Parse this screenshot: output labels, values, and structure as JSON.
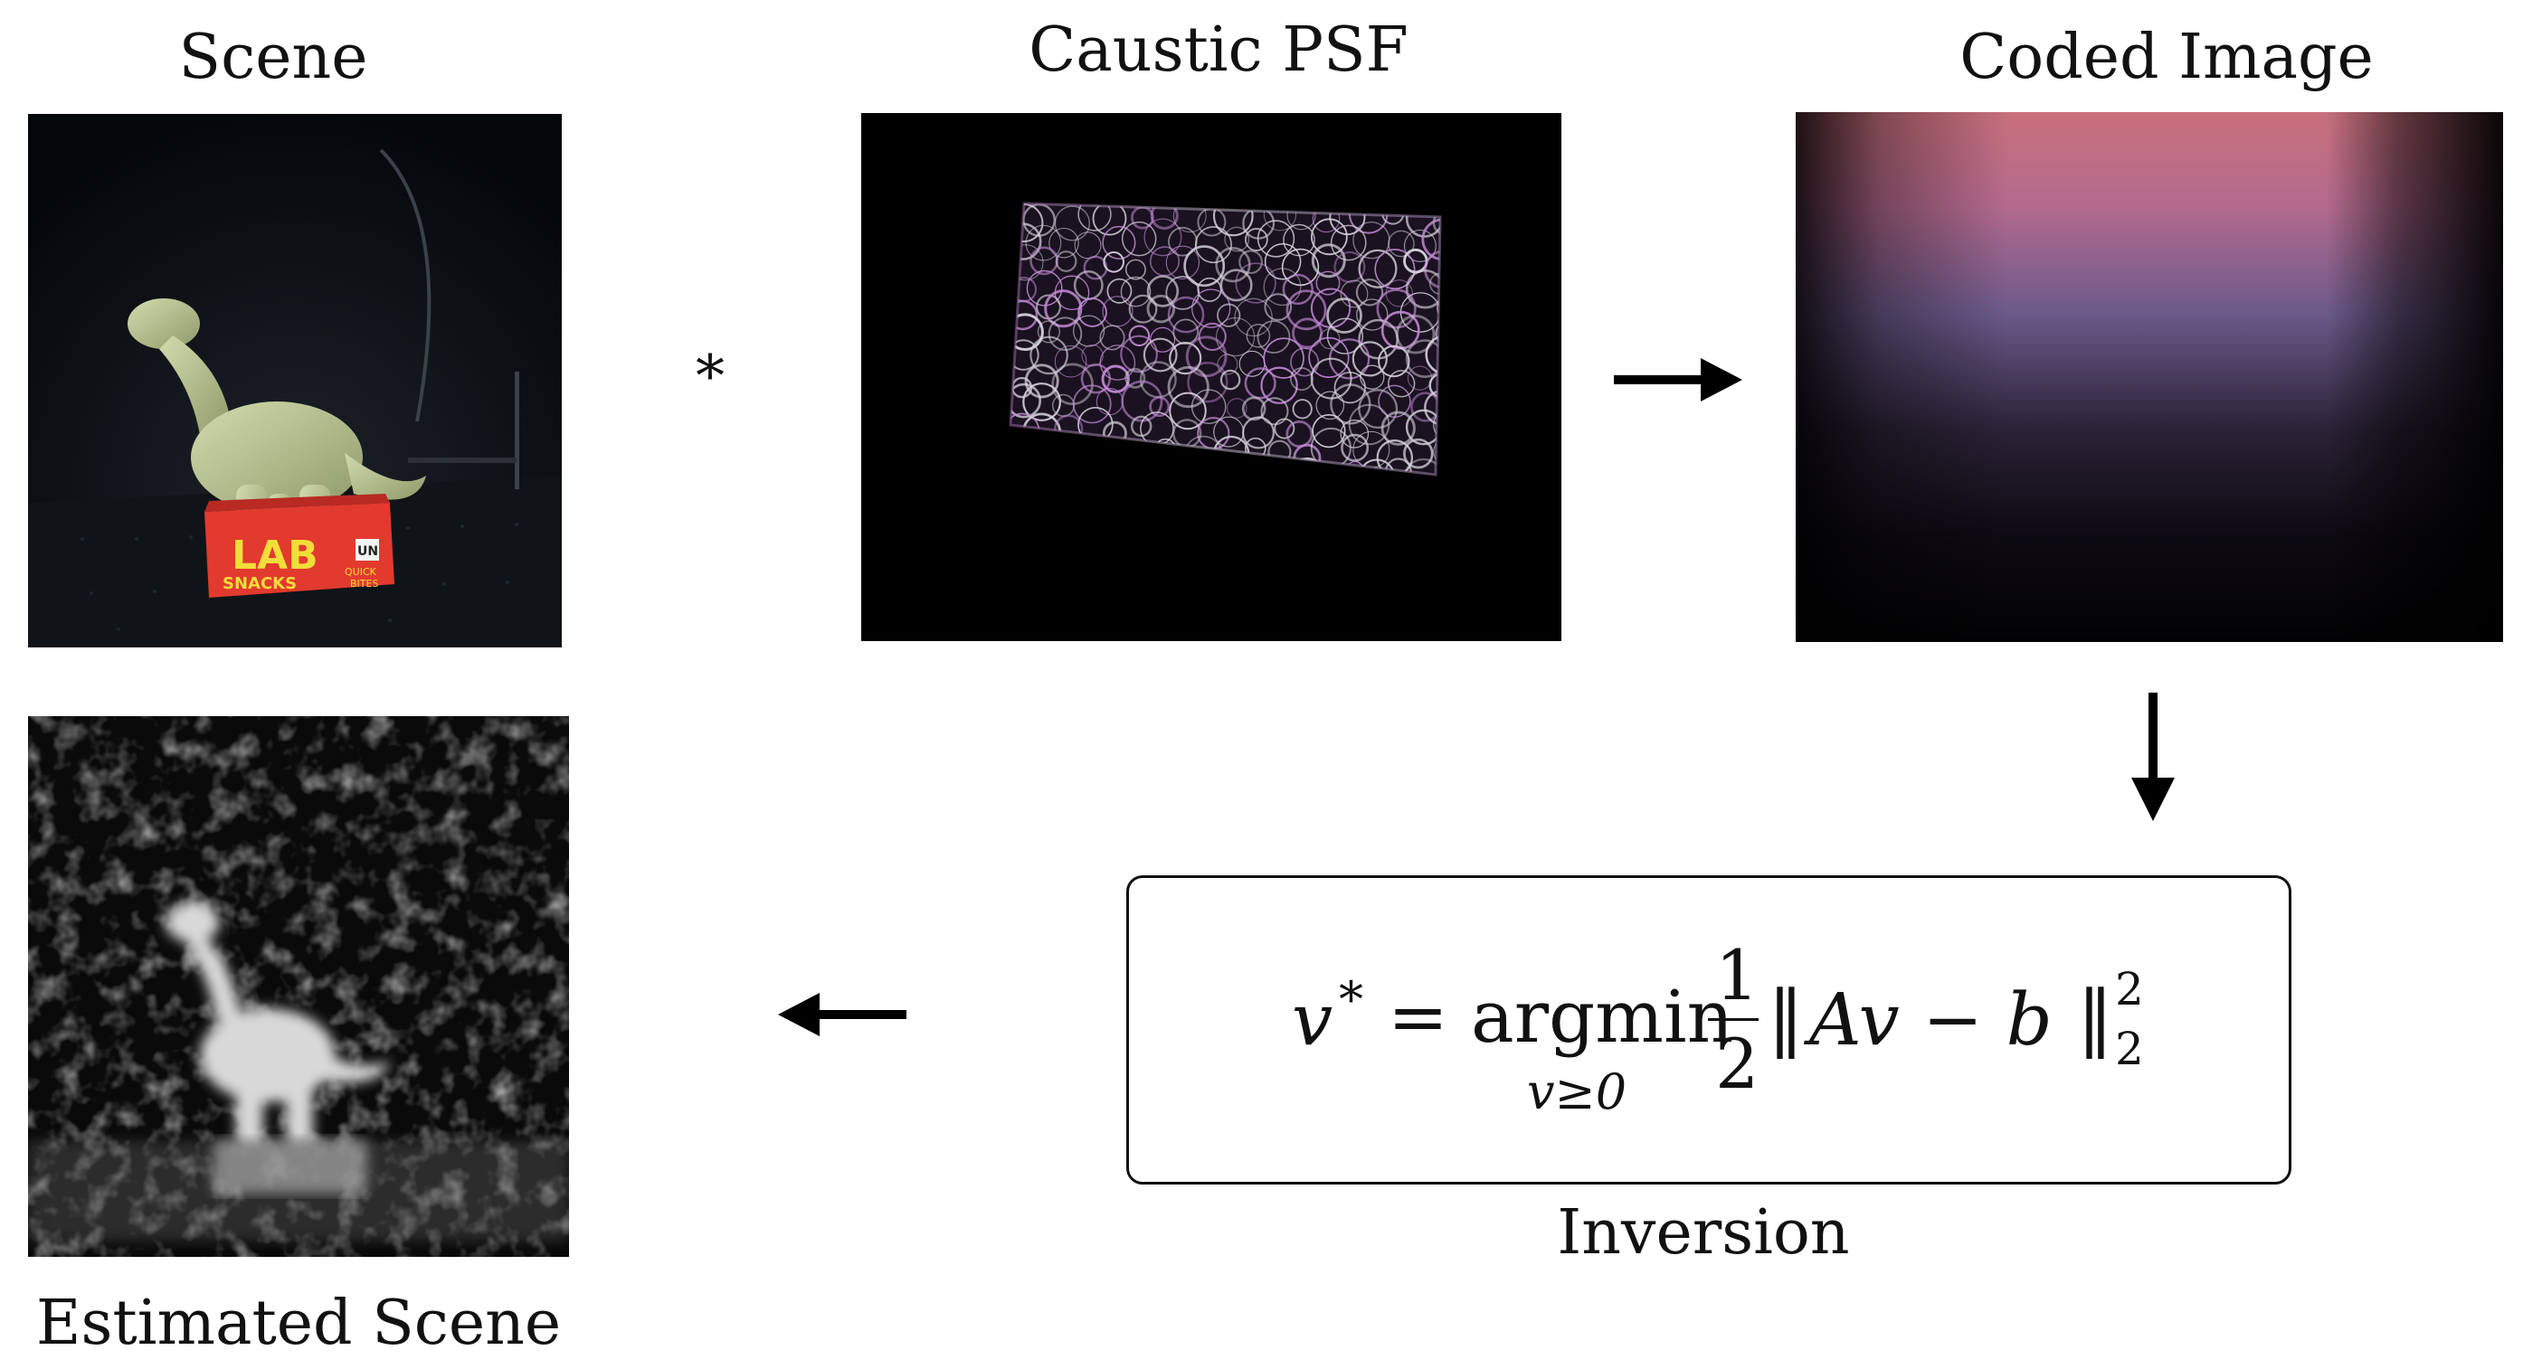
{
  "labels": {
    "scene": "Scene",
    "caustic_psf": "Caustic PSF",
    "coded_image": "Coded Image",
    "estimated_scene": "Estimated Scene",
    "inversion": "Inversion"
  },
  "operators": {
    "convolution": "*"
  },
  "equation": {
    "lhs_var": "v",
    "lhs_sup": "*",
    "equals": "=",
    "op": "argmin",
    "subscript": "v≥0",
    "frac_num": "1",
    "frac_den": "2",
    "norm_open": "‖",
    "body": "Av − b",
    "norm_close": "‖",
    "norm_sup": "2",
    "norm_sub": "2"
  },
  "scene_box_text": {
    "line1": "LAB",
    "line2": "SNACKS",
    "tag": "UN",
    "side1": "QUICK",
    "side2": "BITES"
  },
  "colors": {
    "background": "#ffffff",
    "arrow": "#000000",
    "panel": "#000000"
  }
}
